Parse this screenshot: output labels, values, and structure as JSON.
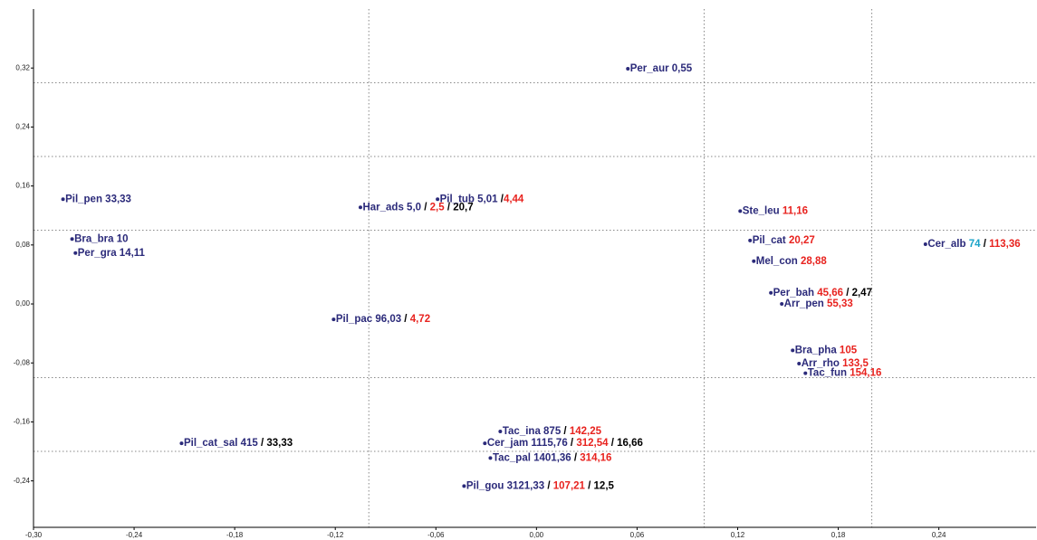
{
  "chart_data": {
    "type": "scatter",
    "xlim": [
      -0.3,
      0.298
    ],
    "ylim": [
      -0.303,
      0.4
    ],
    "xticks": [
      {
        "value": -0.3,
        "label": "-0,30"
      },
      {
        "value": -0.24,
        "label": "-0,24"
      },
      {
        "value": -0.18,
        "label": "-0,18"
      },
      {
        "value": -0.12,
        "label": "-0,12"
      },
      {
        "value": -0.06,
        "label": "-0,06"
      },
      {
        "value": 0,
        "label": "0,00"
      },
      {
        "value": 0.06,
        "label": "0,06"
      },
      {
        "value": 0.12,
        "label": "0,12"
      },
      {
        "value": 0.18,
        "label": "0,18"
      },
      {
        "value": 0.24,
        "label": "0,24"
      }
    ],
    "yticks": [
      {
        "value": 0.32,
        "label": "0,32"
      },
      {
        "value": 0.24,
        "label": "0,24"
      },
      {
        "value": 0.16,
        "label": "0,16"
      },
      {
        "value": 0.08,
        "label": "0,08"
      },
      {
        "value": 0,
        "label": "0,00"
      },
      {
        "value": -0.08,
        "label": "-0,08"
      },
      {
        "value": -0.16,
        "label": "-0,16"
      },
      {
        "value": -0.24,
        "label": "-0,24"
      }
    ],
    "xref": [
      -0.1,
      0.1,
      0.2
    ],
    "yref": [
      0.3,
      0.2,
      0.1,
      -0.1,
      -0.2
    ],
    "point_color": "#2b2a7a",
    "points": [
      {
        "x": 0.0545,
        "y": 0.319,
        "label": [
          {
            "text": "Per_aur 0,55",
            "color": "#2b2a7a"
          }
        ]
      },
      {
        "x": -0.2824,
        "y": 0.142,
        "label": [
          {
            "text": "Pil_pen 33,33",
            "color": "#2b2a7a"
          }
        ]
      },
      {
        "x": -0.277,
        "y": 0.088,
        "label": [
          {
            "text": "Bra_bra 10",
            "color": "#2b2a7a"
          }
        ]
      },
      {
        "x": -0.275,
        "y": 0.069,
        "label": [
          {
            "text": "Per_gra 14,11",
            "color": "#2b2a7a"
          }
        ]
      },
      {
        "x": -0.105,
        "y": 0.131,
        "label": [
          {
            "text": "Har_ads 5,0",
            "color": "#2b2a7a"
          },
          {
            "text": " / ",
            "color": "#000000"
          },
          {
            "text": "2,5",
            "color": "#e8231f"
          },
          {
            "text": " / 20,7",
            "color": "#000000"
          }
        ]
      },
      {
        "x": -0.059,
        "y": 0.142,
        "label": [
          {
            "text": "Pil_tub 5,01",
            "color": "#2b2a7a"
          },
          {
            "text": " /",
            "color": "#000000"
          },
          {
            "text": "4,44",
            "color": "#e8231f"
          }
        ]
      },
      {
        "x": 0.1215,
        "y": 0.126,
        "label": [
          {
            "text": "Ste_leu ",
            "color": "#2b2a7a"
          },
          {
            "text": "11,16",
            "color": "#e8231f"
          }
        ]
      },
      {
        "x": 0.1274,
        "y": 0.086,
        "label": [
          {
            "text": "Pil_cat ",
            "color": "#2b2a7a"
          },
          {
            "text": "20,27",
            "color": "#e8231f"
          }
        ]
      },
      {
        "x": 0.232,
        "y": 0.081,
        "label": [
          {
            "text": "Cer_alb ",
            "color": "#2b2a7a"
          },
          {
            "text": "74",
            "color": "#1aa3c8"
          },
          {
            "text": " / ",
            "color": "#000000"
          },
          {
            "text": "113,36",
            "color": "#e8231f"
          }
        ]
      },
      {
        "x": 0.1296,
        "y": 0.058,
        "label": [
          {
            "text": "Mel_con ",
            "color": "#2b2a7a"
          },
          {
            "text": "28,88",
            "color": "#e8231f"
          }
        ]
      },
      {
        "x": 0.1398,
        "y": 0.015,
        "label": [
          {
            "text": "Per_bah ",
            "color": "#2b2a7a"
          },
          {
            "text": "45,66",
            "color": "#e8231f"
          },
          {
            "text": " / 2,47",
            "color": "#000000"
          }
        ]
      },
      {
        "x": 0.1463,
        "y": 0.0,
        "label": [
          {
            "text": "Arr_pen ",
            "color": "#2b2a7a"
          },
          {
            "text": "55,33",
            "color": "#e8231f"
          }
        ]
      },
      {
        "x": -0.121,
        "y": -0.021,
        "label": [
          {
            "text": "Pil_pac 96,03",
            "color": "#2b2a7a"
          },
          {
            "text": " / ",
            "color": "#000000"
          },
          {
            "text": "4,72",
            "color": "#e8231f"
          }
        ]
      },
      {
        "x": 0.1528,
        "y": -0.063,
        "label": [
          {
            "text": "Bra_pha ",
            "color": "#2b2a7a"
          },
          {
            "text": "105",
            "color": "#e8231f"
          }
        ]
      },
      {
        "x": 0.1566,
        "y": -0.081,
        "label": [
          {
            "text": "Arr_rho ",
            "color": "#2b2a7a"
          },
          {
            "text": "133,5",
            "color": "#e8231f"
          }
        ]
      },
      {
        "x": 0.1604,
        "y": -0.094,
        "label": [
          {
            "text": "Tac_fun ",
            "color": "#2b2a7a"
          },
          {
            "text": "154,16",
            "color": "#e8231f"
          }
        ]
      },
      {
        "x": -0.0216,
        "y": -0.173,
        "label": [
          {
            "text": "Tac_ina 875",
            "color": "#2b2a7a"
          },
          {
            "text": " / ",
            "color": "#000000"
          },
          {
            "text": "142,25",
            "color": "#e8231f"
          }
        ]
      },
      {
        "x": -0.2117,
        "y": -0.189,
        "label": [
          {
            "text": "Pil_cat_sal 415",
            "color": "#2b2a7a"
          },
          {
            "text": " / 33,33",
            "color": "#000000"
          }
        ]
      },
      {
        "x": -0.0308,
        "y": -0.189,
        "label": [
          {
            "text": "Cer_jam 1115,76",
            "color": "#2b2a7a"
          },
          {
            "text": " / ",
            "color": "#000000"
          },
          {
            "text": "312,54",
            "color": "#e8231f"
          },
          {
            "text": " / 16,66",
            "color": "#000000"
          }
        ]
      },
      {
        "x": -0.0275,
        "y": -0.209,
        "label": [
          {
            "text": "Tac_pal 1401,36",
            "color": "#2b2a7a"
          },
          {
            "text": " / ",
            "color": "#000000"
          },
          {
            "text": "314,16",
            "color": "#e8231f"
          }
        ]
      },
      {
        "x": -0.0432,
        "y": -0.247,
        "label": [
          {
            "text": "Pil_gou 3121,33",
            "color": "#2b2a7a"
          },
          {
            "text": " / ",
            "color": "#000000"
          },
          {
            "text": "107,21",
            "color": "#e8231f"
          },
          {
            "text": " / 12,5",
            "color": "#000000"
          }
        ]
      }
    ]
  }
}
